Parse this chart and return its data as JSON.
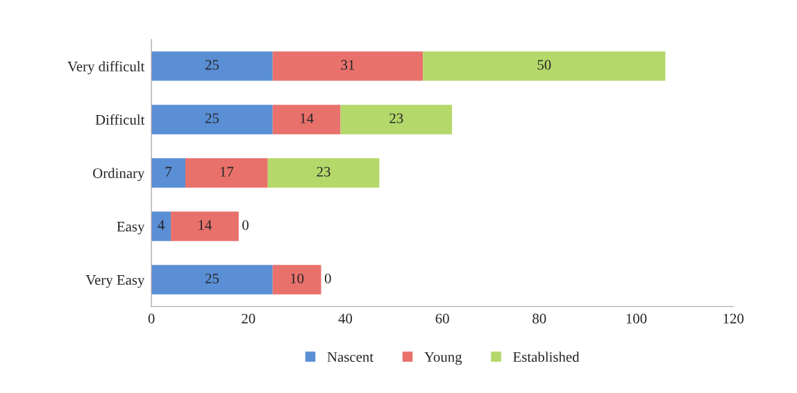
{
  "chart_data": {
    "type": "bar",
    "orientation": "horizontal",
    "stacked": true,
    "categories": [
      "Very difficult",
      "Difficult",
      "Ordinary",
      "Easy",
      "Very Easy"
    ],
    "series": [
      {
        "name": "Nascent",
        "color": "#5a8fd6",
        "values": [
          25,
          25,
          7,
          4,
          25
        ]
      },
      {
        "name": "Young",
        "color": "#e8716c",
        "values": [
          31,
          14,
          17,
          14,
          10
        ]
      },
      {
        "name": "Established",
        "color": "#b4d86a",
        "values": [
          50,
          23,
          23,
          0,
          0
        ]
      }
    ],
    "xlim": [
      0,
      120
    ],
    "xticks": [
      0,
      20,
      40,
      60,
      80,
      100,
      120
    ],
    "data_labels": true,
    "legend": "bottom",
    "grid": false
  }
}
